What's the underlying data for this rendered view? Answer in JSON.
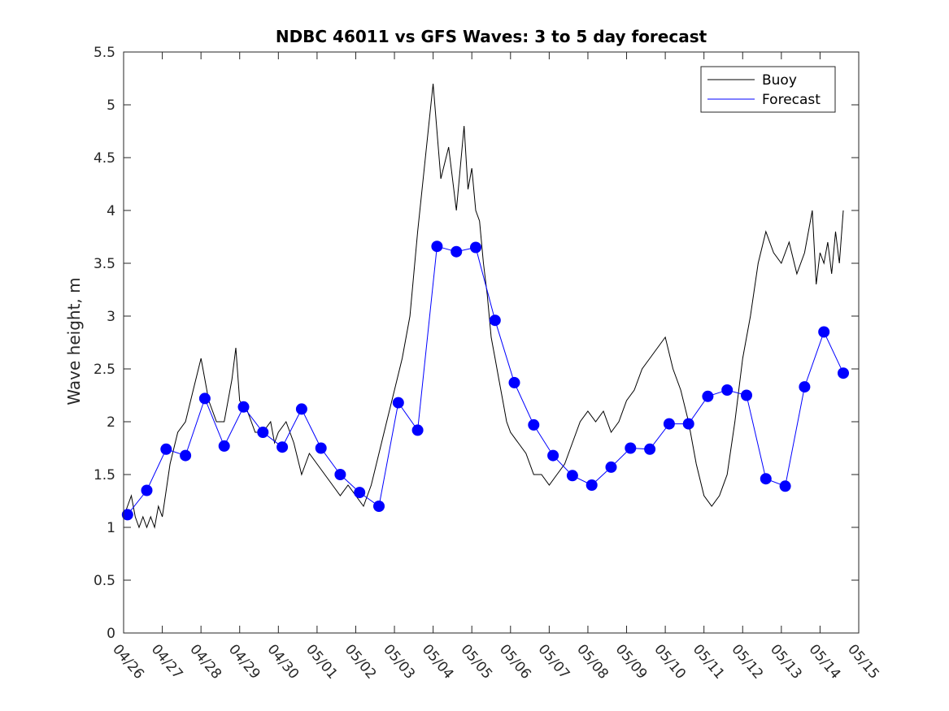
{
  "chart_data": {
    "type": "line",
    "title": "NDBC 46011 vs GFS Waves: 3 to 5 day forecast",
    "xlabel": "",
    "ylabel": "Wave height, m",
    "xlim": [
      0,
      19
    ],
    "ylim": [
      0,
      5.5
    ],
    "yticks": [
      "0",
      "0.5",
      "1",
      "1.5",
      "2",
      "2.5",
      "3",
      "3.5",
      "4",
      "4.5",
      "5",
      "5.5"
    ],
    "xtick_labels": [
      "04/26",
      "04/27",
      "04/28",
      "04/29",
      "04/30",
      "05/01",
      "05/02",
      "05/03",
      "05/04",
      "05/05",
      "05/06",
      "05/07",
      "05/08",
      "05/09",
      "05/10",
      "05/11",
      "05/12",
      "05/13",
      "05/14",
      "05/15"
    ],
    "grid": false,
    "legend": {
      "placement": "top-right",
      "entries": [
        "Buoy",
        "Forecast"
      ]
    },
    "colors": {
      "buoy": "#000000",
      "forecast": "#0000ff"
    },
    "series": [
      {
        "name": "Buoy",
        "x": [
          0,
          0.1,
          0.2,
          0.3,
          0.4,
          0.5,
          0.6,
          0.7,
          0.8,
          0.9,
          1.0,
          1.2,
          1.4,
          1.6,
          1.8,
          2.0,
          2.2,
          2.4,
          2.6,
          2.8,
          2.9,
          3.0,
          3.2,
          3.4,
          3.6,
          3.8,
          3.9,
          4.0,
          4.2,
          4.4,
          4.6,
          4.8,
          5.0,
          5.2,
          5.4,
          5.6,
          5.8,
          6.0,
          6.2,
          6.4,
          6.6,
          6.8,
          7.0,
          7.2,
          7.4,
          7.6,
          7.8,
          8.0,
          8.2,
          8.4,
          8.6,
          8.8,
          8.9,
          9.0,
          9.1,
          9.2,
          9.3,
          9.4,
          9.5,
          9.6,
          9.7,
          9.8,
          9.9,
          10.0,
          10.2,
          10.4,
          10.6,
          10.8,
          11.0,
          11.2,
          11.4,
          11.6,
          11.8,
          12.0,
          12.2,
          12.4,
          12.6,
          12.8,
          13.0,
          13.2,
          13.4,
          13.6,
          13.8,
          14.0,
          14.2,
          14.4,
          14.6,
          14.8,
          15.0,
          15.2,
          15.4,
          15.6,
          15.8,
          16.0,
          16.2,
          16.4,
          16.6,
          16.8,
          17.0,
          17.2,
          17.4,
          17.6,
          17.8,
          17.9,
          18.0,
          18.1,
          18.2,
          18.3,
          18.4,
          18.5,
          18.6
        ],
        "values": [
          1.1,
          1.2,
          1.3,
          1.1,
          1.0,
          1.1,
          1.0,
          1.1,
          1.0,
          1.2,
          1.1,
          1.6,
          1.9,
          2.0,
          2.3,
          2.6,
          2.2,
          2.0,
          2.0,
          2.4,
          2.7,
          2.2,
          2.1,
          1.9,
          1.9,
          2.0,
          1.8,
          1.9,
          2.0,
          1.8,
          1.5,
          1.7,
          1.6,
          1.5,
          1.4,
          1.3,
          1.4,
          1.3,
          1.2,
          1.4,
          1.7,
          2.0,
          2.3,
          2.6,
          3.0,
          3.8,
          4.5,
          5.2,
          4.3,
          4.6,
          4.0,
          4.8,
          4.2,
          4.4,
          4.0,
          3.9,
          3.5,
          3.2,
          2.8,
          2.6,
          2.4,
          2.2,
          2.0,
          1.9,
          1.8,
          1.7,
          1.5,
          1.5,
          1.4,
          1.5,
          1.6,
          1.8,
          2.0,
          2.1,
          2.0,
          2.1,
          1.9,
          2.0,
          2.2,
          2.3,
          2.5,
          2.6,
          2.7,
          2.8,
          2.5,
          2.3,
          2.0,
          1.6,
          1.3,
          1.2,
          1.3,
          1.5,
          2.0,
          2.6,
          3.0,
          3.5,
          3.8,
          3.6,
          3.5,
          3.7,
          3.4,
          3.6,
          4.0,
          3.3,
          3.6,
          3.5,
          3.7,
          3.4,
          3.8,
          3.5,
          4.0
        ]
      },
      {
        "name": "Forecast",
        "x": [
          0.1,
          0.6,
          1.1,
          1.6,
          2.1,
          2.6,
          3.1,
          3.6,
          4.1,
          4.6,
          5.1,
          5.6,
          6.1,
          6.6,
          7.1,
          7.6,
          8.1,
          8.6,
          9.1,
          9.6,
          10.1,
          10.6,
          11.1,
          11.6,
          12.1,
          12.6,
          13.1,
          13.6,
          14.1,
          14.6,
          15.1,
          15.6,
          16.1,
          16.6,
          17.1,
          17.6,
          18.1,
          18.6
        ],
        "values": [
          1.12,
          1.35,
          1.74,
          1.68,
          2.22,
          1.77,
          2.14,
          1.9,
          1.76,
          2.12,
          1.75,
          1.5,
          1.33,
          1.2,
          2.18,
          1.92,
          3.66,
          3.61,
          3.65,
          2.96,
          2.37,
          1.97,
          1.68,
          1.49,
          1.4,
          1.57,
          1.75,
          1.74,
          1.98,
          1.98,
          2.24,
          2.3,
          2.25,
          1.46,
          1.39,
          2.33,
          2.85,
          2.46
        ]
      }
    ]
  }
}
